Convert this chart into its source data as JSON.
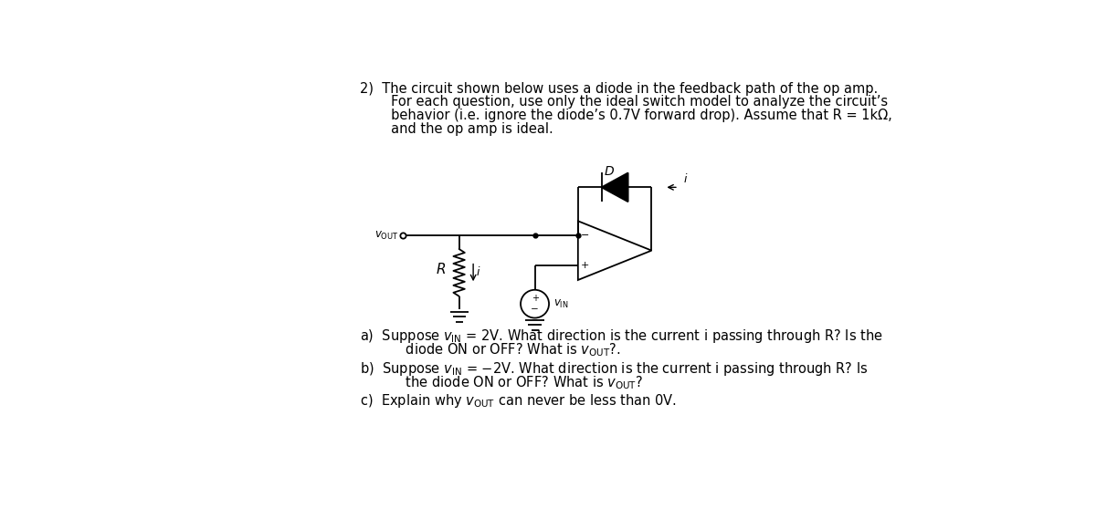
{
  "bg_color": "#ffffff",
  "text_color": "#000000",
  "fig_width": 12.0,
  "fig_height": 5.69,
  "title_line1": "2)  The circuit shown below uses a diode in the feedback path of the op amp.",
  "title_line2": "     For each question, use only the ideal switch model to analyze the circuit’s",
  "title_line3": "     behavior (i.e. ignore the diode’s 0.7V forward drop). Assume that R = 1kΩ,",
  "title_line4": "     and the op amp is ideal.",
  "qa": "a)  Suppose $v_{\\mathrm{IN}}$ = 2V. What direction is the current i passing through R? Is the",
  "qa2": "      diode ON or OFF? What is $v_{\\mathrm{OUT}}$?.",
  "qb": "b)  Suppose $v_{\\mathrm{IN}}$ = −2V. What direction is the current i passing through R? Is",
  "qb2": "      the diode ON or OFF? What is $v_{\\mathrm{OUT}}$?",
  "qc": "c)  Explain why $v_{\\mathrm{OUT}}$ can never be less than 0V."
}
